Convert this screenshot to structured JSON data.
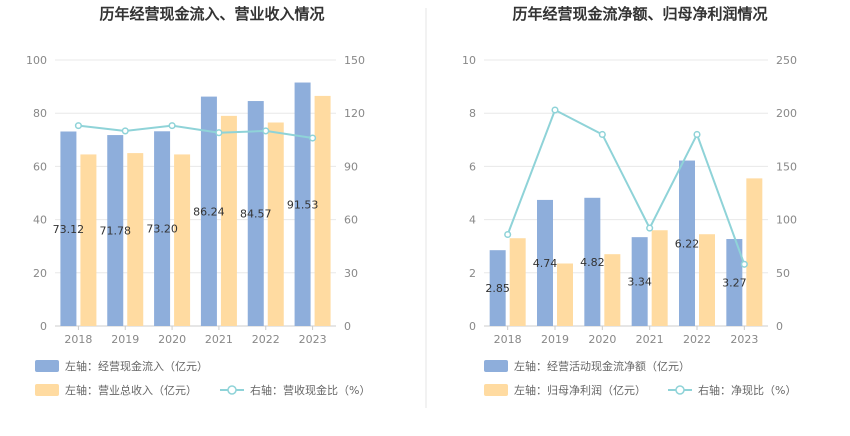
{
  "colors": {
    "bar_primary": "#8eaedb",
    "bar_secondary": "#ffdba1",
    "line": "#8fd3d8",
    "grid": "#e8e8e8",
    "divider": "#e6e6e6"
  },
  "chart_data": [
    {
      "type": "bar",
      "title": "历年经营现金流入、营业收入情况",
      "categories": [
        "2018",
        "2019",
        "2020",
        "2021",
        "2022",
        "2023"
      ],
      "ylim": [
        0,
        100
      ],
      "y2lim": [
        0,
        150
      ],
      "yticks": [
        "0",
        "20",
        "40",
        "60",
        "80",
        "100"
      ],
      "y2ticks": [
        "0",
        "30",
        "60",
        "90",
        "120",
        "150"
      ],
      "grid": true,
      "legend_position": "bottom-left",
      "series": [
        {
          "name": "左轴：经营现金流入（亿元）",
          "kind": "bar",
          "axis": "left",
          "values": [
            73.12,
            71.78,
            73.2,
            86.24,
            84.57,
            91.53
          ],
          "labels": [
            "73.12",
            "71.78",
            "73.20",
            "86.24",
            "84.57",
            "91.53"
          ]
        },
        {
          "name": "左轴：营业总收入（亿元）",
          "kind": "bar",
          "axis": "left",
          "values": [
            64.5,
            65.0,
            64.5,
            79.0,
            76.5,
            86.5
          ]
        },
        {
          "name": "右轴：营收现金比（%）",
          "kind": "line",
          "axis": "right",
          "values": [
            113,
            110,
            113,
            109,
            110,
            106
          ]
        }
      ]
    },
    {
      "type": "bar",
      "title": "历年经营现金流净额、归母净利润情况",
      "categories": [
        "2018",
        "2019",
        "2020",
        "2021",
        "2022",
        "2023"
      ],
      "ylim": [
        0,
        10
      ],
      "y2lim": [
        0,
        250
      ],
      "yticks": [
        "0",
        "2",
        "4",
        "6",
        "8",
        "10"
      ],
      "y2ticks": [
        "0",
        "50",
        "100",
        "150",
        "200",
        "250"
      ],
      "grid": true,
      "legend_position": "bottom-left",
      "series": [
        {
          "name": "左轴：经营活动现金流净额（亿元）",
          "kind": "bar",
          "axis": "left",
          "values": [
            2.85,
            4.74,
            4.82,
            3.34,
            6.22,
            3.27
          ],
          "labels": [
            "2.85",
            "4.74",
            "4.82",
            "3.34",
            "6.22",
            "3.27"
          ]
        },
        {
          "name": "左轴：归母净利润（亿元）",
          "kind": "bar",
          "axis": "left",
          "values": [
            3.3,
            2.35,
            2.7,
            3.6,
            3.45,
            5.55
          ]
        },
        {
          "name": "右轴：净现比（%）",
          "kind": "line",
          "axis": "right",
          "values": [
            86,
            203,
            180,
            92,
            180,
            58
          ]
        }
      ]
    }
  ]
}
